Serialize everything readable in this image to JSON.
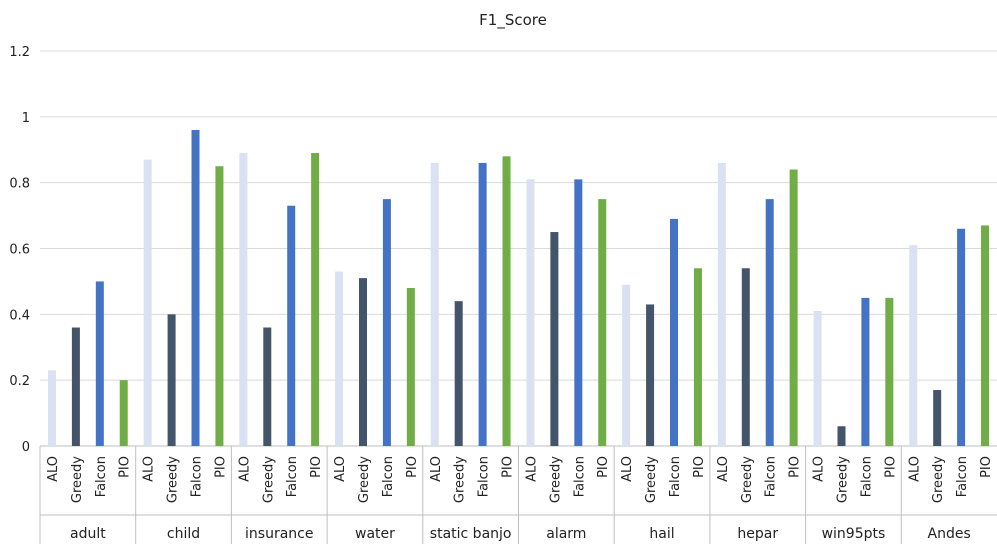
{
  "chart_data": {
    "type": "bar",
    "title": "F1_Score",
    "xlabel": "",
    "ylabel": "",
    "ylim": [
      0,
      1.2
    ],
    "yticks": [
      "0",
      "0.2",
      "0.4",
      "0.6",
      "0.8",
      "1",
      "1.2"
    ],
    "grid": true,
    "legend": "none",
    "groups": [
      "adult",
      "child",
      "insurance",
      "water",
      "static banjo",
      "alarm",
      "hail",
      "hepar",
      "win95pts",
      "Andes"
    ],
    "methods": [
      "ALO",
      "Greedy",
      "Falcon",
      "PIO"
    ],
    "colors": {
      "ALO": "#d9e1f2",
      "Greedy": "#44546a",
      "Falcon": "#4472c4",
      "PIO": "#70ad47"
    },
    "series": [
      {
        "method": "ALO",
        "values": [
          0.23,
          0.87,
          0.89,
          0.53,
          0.86,
          0.81,
          0.49,
          0.86,
          0.41,
          0.61
        ]
      },
      {
        "method": "Greedy",
        "values": [
          0.36,
          0.4,
          0.36,
          0.51,
          0.44,
          0.65,
          0.43,
          0.54,
          0.06,
          0.17
        ]
      },
      {
        "method": "Falcon",
        "values": [
          0.5,
          0.96,
          0.73,
          0.75,
          0.86,
          0.81,
          0.69,
          0.75,
          0.45,
          0.66
        ]
      },
      {
        "method": "PIO",
        "values": [
          0.2,
          0.85,
          0.89,
          0.48,
          0.88,
          0.75,
          0.54,
          0.84,
          0.45,
          0.67
        ]
      }
    ]
  }
}
